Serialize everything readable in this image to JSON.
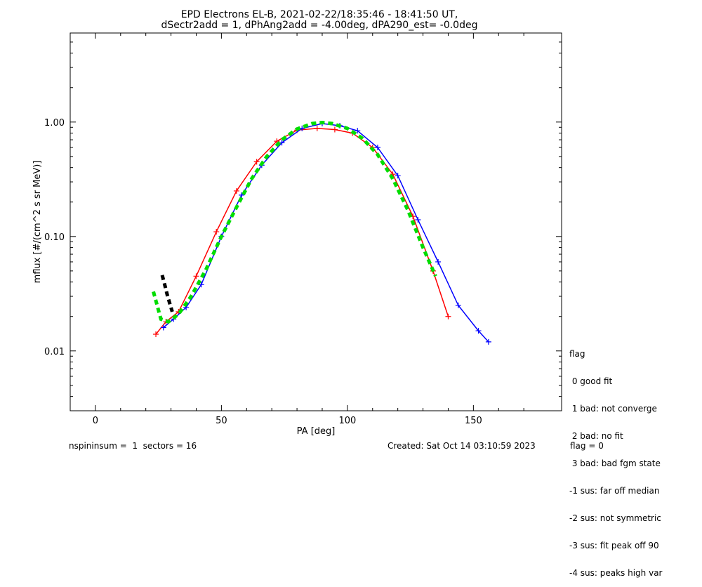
{
  "chart_data": {
    "type": "line",
    "title": "EPD Electrons EL-B, 2021-02-22/18:35:46 - 18:41:50 UT,",
    "subtitle": "dSectr2add = 1, dPhAng2add = -4.00deg, dPA290_est=  -0.0deg",
    "xlabel": "PA [deg]",
    "ylabel": "mflux [#/(cm^2 s sr MeV)]",
    "xlim": [
      -10,
      185
    ],
    "ylim": [
      0.003,
      6
    ],
    "yscale": "log",
    "x_ticks": [
      "0",
      "50",
      "100",
      "150"
    ],
    "x_tick_values": [
      0,
      50,
      100,
      150
    ],
    "y_ticks": [
      "0.01",
      "0.10",
      "1.00"
    ],
    "y_tick_values": [
      0.01,
      0.1,
      1.0
    ],
    "series": [
      {
        "color": "#ff0000",
        "marker": "+",
        "x": [
          24,
          28,
          33,
          40,
          48,
          56,
          64,
          72,
          80,
          88,
          95,
          102,
          110,
          118,
          126,
          134,
          140
        ],
        "values": [
          0.014,
          0.018,
          0.022,
          0.045,
          0.11,
          0.25,
          0.45,
          0.68,
          0.85,
          0.88,
          0.86,
          0.8,
          0.6,
          0.35,
          0.15,
          0.05,
          0.02
        ]
      },
      {
        "color": "#0000ff",
        "marker": "+",
        "x": [
          27,
          31,
          36,
          42,
          50,
          58,
          66,
          74,
          82,
          90,
          97,
          104,
          112,
          120,
          128,
          136,
          144,
          152,
          156
        ],
        "values": [
          0.016,
          0.019,
          0.024,
          0.038,
          0.1,
          0.23,
          0.42,
          0.66,
          0.88,
          0.97,
          0.93,
          0.84,
          0.6,
          0.34,
          0.14,
          0.06,
          0.025,
          0.015,
          0.012
        ]
      },
      {
        "color": "#00dd00",
        "style": "dashed",
        "x": [
          23,
          26,
          29,
          33,
          38,
          44,
          50,
          56,
          62,
          68,
          74,
          80,
          86,
          90,
          94,
          100,
          106,
          112,
          118,
          124,
          130,
          135
        ],
        "values": [
          0.033,
          0.019,
          0.018,
          0.021,
          0.03,
          0.052,
          0.1,
          0.18,
          0.32,
          0.5,
          0.7,
          0.87,
          0.97,
          0.99,
          0.97,
          0.88,
          0.72,
          0.52,
          0.32,
          0.17,
          0.08,
          0.045
        ]
      },
      {
        "color": "#000000",
        "style": "dashed",
        "x": [
          26.5,
          27.5,
          28.5,
          29.5,
          30.5
        ],
        "values": [
          0.046,
          0.038,
          0.031,
          0.026,
          0.022
        ]
      }
    ]
  },
  "legend": {
    "title": "flag",
    "entries": [
      " 0 good fit",
      " 1 bad: not converge",
      " 2 bad: no fit",
      " 3 bad: bad fgm state",
      "-1 sus: far off median",
      "-2 sus: not symmetric",
      "-3 sus: fit peak off 90",
      "-4 sus: peaks high var"
    ]
  },
  "footer": {
    "left": "nspininsum =  1  sectors = 16",
    "created": "Created: Sat Oct 14 03:10:59 2023",
    "flag": "flag = 0"
  },
  "colors": {
    "red": "#ff0000",
    "blue": "#0000ff",
    "fit": "#00dd00",
    "fit_black": "#000000"
  }
}
